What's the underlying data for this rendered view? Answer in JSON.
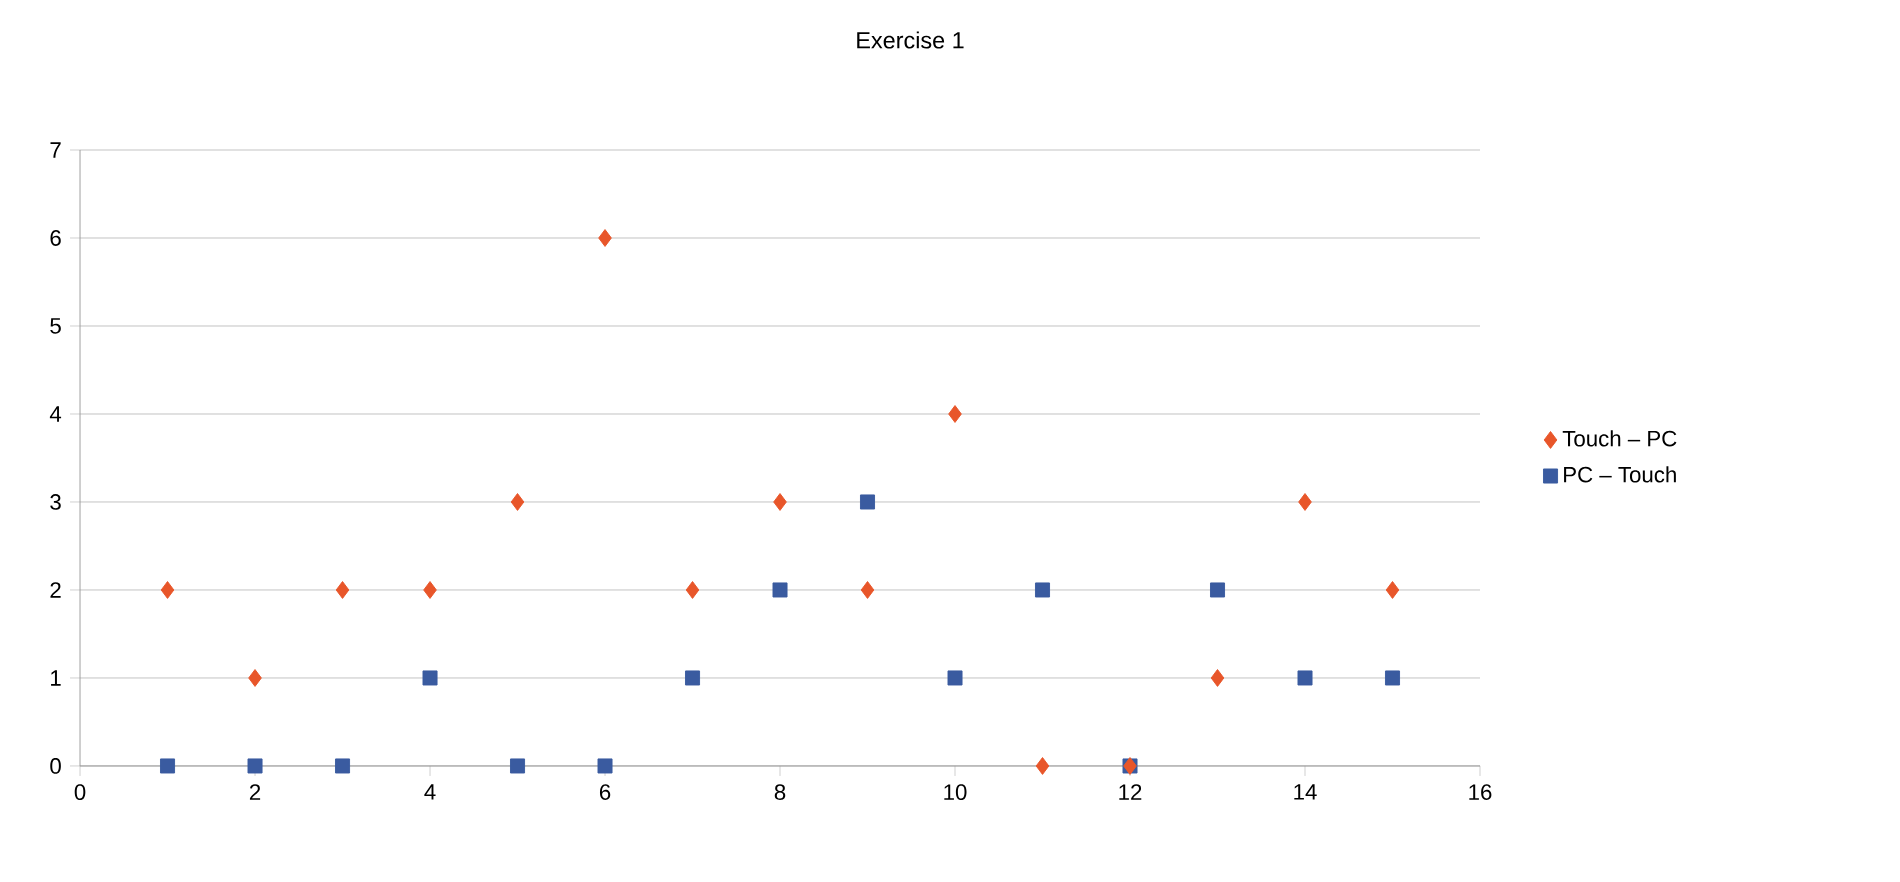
{
  "chart_data": {
    "type": "scatter",
    "title": "Exercise 1",
    "x": [
      1,
      2,
      3,
      4,
      5,
      6,
      7,
      8,
      9,
      10,
      11,
      12,
      13,
      14,
      15
    ],
    "series": [
      {
        "name": "Touch – PC",
        "color": "#e8562a",
        "marker": "diamond",
        "values": [
          2,
          1,
          2,
          2,
          3,
          6,
          2,
          3,
          2,
          4,
          0,
          0,
          1,
          3,
          2
        ]
      },
      {
        "name": "PC – Touch",
        "color": "#3a5ba0",
        "marker": "square",
        "values": [
          0,
          0,
          0,
          1,
          0,
          0,
          1,
          2,
          3,
          1,
          2,
          0,
          2,
          1,
          1
        ]
      }
    ],
    "xlim": [
      0,
      16
    ],
    "xticks": [
      0,
      2,
      4,
      6,
      8,
      10,
      12,
      14,
      16
    ],
    "ylim": [
      0,
      7
    ],
    "yticks": [
      0,
      1,
      2,
      3,
      4,
      5,
      6,
      7
    ],
    "grid": "y",
    "legend": "right"
  }
}
